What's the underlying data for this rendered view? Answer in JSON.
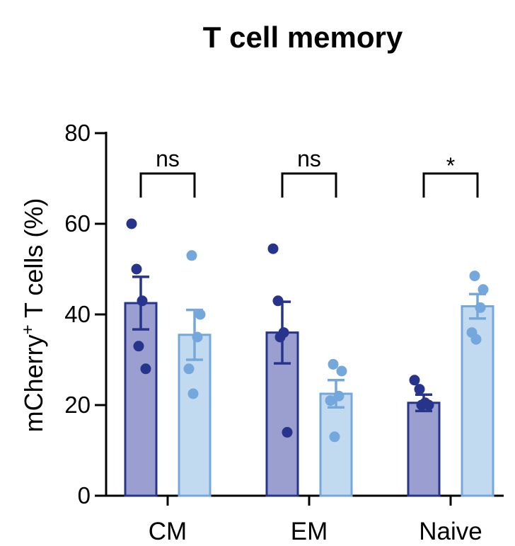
{
  "chart_data": {
    "type": "bar",
    "title": "T cell memory",
    "xlabel": "",
    "ylabel": "mCherry",
    "ylabel_superscript": "+",
    "ylabel_suffix": " T cells (%)",
    "ylim": [
      0,
      80
    ],
    "yticks": [
      "0",
      "20",
      "40",
      "60",
      "80"
    ],
    "grid": false,
    "categories": [
      "CM",
      "EM",
      "Naive"
    ],
    "series": [
      {
        "color_fill": "#9a9fd0",
        "color_stroke": "#27348b",
        "values": [
          42.5,
          36.0,
          20.5
        ],
        "errors": [
          5.8,
          6.8,
          1.8
        ],
        "points": [
          [
            60,
            50,
            43,
            33,
            28
          ],
          [
            54.5,
            43,
            36,
            35,
            14
          ],
          [
            25.5,
            23.5,
            20.5,
            20,
            20
          ]
        ]
      },
      {
        "color_fill": "#c2daf0",
        "color_stroke": "#74a8dd",
        "values": [
          35.5,
          22.5,
          41.8
        ],
        "errors": [
          5.5,
          3.0,
          2.7
        ],
        "points": [
          [
            53,
            40,
            35,
            28,
            22.5
          ],
          [
            29,
            27.5,
            22,
            21,
            13
          ],
          [
            48.5,
            45.5,
            41.5,
            36,
            34.5
          ]
        ]
      }
    ],
    "significance": [
      "ns",
      "ns",
      "*"
    ]
  }
}
